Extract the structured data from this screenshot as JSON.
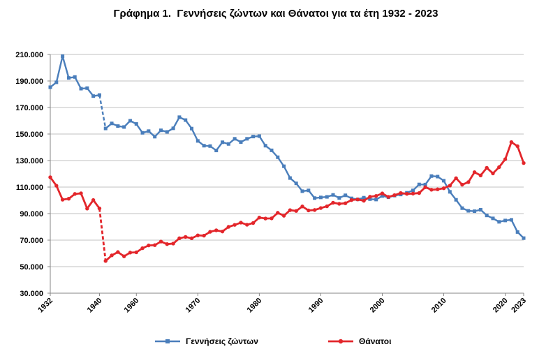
{
  "chart_data": {
    "type": "line",
    "title": "Γράφημα 1.  Γεννήσεις ζώντων και Θάνατοι για τα έτη 1932 - 2023",
    "x": [
      1932,
      1933,
      1934,
      1935,
      1936,
      1937,
      1938,
      1939,
      1940,
      1955,
      1956,
      1957,
      1958,
      1959,
      1960,
      1961,
      1962,
      1963,
      1964,
      1965,
      1966,
      1967,
      1968,
      1969,
      1970,
      1971,
      1972,
      1973,
      1974,
      1975,
      1976,
      1977,
      1978,
      1979,
      1980,
      1981,
      1982,
      1983,
      1984,
      1985,
      1986,
      1987,
      1988,
      1989,
      1990,
      1991,
      1992,
      1993,
      1994,
      1995,
      1996,
      1997,
      1998,
      1999,
      2000,
      2001,
      2002,
      2003,
      2004,
      2005,
      2006,
      2007,
      2008,
      2009,
      2010,
      2011,
      2012,
      2013,
      2014,
      2015,
      2016,
      2017,
      2018,
      2019,
      2020,
      2021,
      2022,
      2023
    ],
    "xticks": [
      1932,
      1940,
      1960,
      1970,
      1980,
      1990,
      2000,
      2010,
      2020,
      2023
    ],
    "xtick_labels": [
      "1932",
      "1940",
      "1960",
      "1970",
      "1980",
      "1990",
      "2000",
      "2010",
      "2020",
      "2023"
    ],
    "ylim": [
      30000,
      210000
    ],
    "yticks": [
      30000,
      50000,
      70000,
      90000,
      110000,
      130000,
      150000,
      170000,
      190000,
      210000
    ],
    "ytick_labels": [
      "30.000",
      "50.000",
      "70.000",
      "90.000",
      "110.000",
      "130.000",
      "150.000",
      "170.000",
      "190.000",
      "210.000"
    ],
    "grid": "horizontal",
    "legend": "bottom",
    "series": [
      {
        "name": "Γεννήσεις ζώντων",
        "color": "#4a7ebb",
        "marker": "square",
        "values": [
          185300,
          189000,
          208700,
          192300,
          193000,
          184200,
          184600,
          178600,
          179400,
          154200,
          158000,
          156000,
          155300,
          160000,
          157600,
          150900,
          152200,
          148000,
          152800,
          151600,
          154300,
          162700,
          160500,
          154100,
          144800,
          141200,
          140900,
          137600,
          143800,
          142500,
          146400,
          143900,
          146400,
          148100,
          148400,
          141200,
          137700,
          132500,
          125700,
          116800,
          112800,
          106900,
          107500,
          101700,
          102200,
          102600,
          104100,
          101800,
          103800,
          101500,
          100700,
          102000,
          100900,
          100600,
          103300,
          102300,
          103600,
          104400,
          105700,
          107500,
          112000,
          111900,
          118300,
          117900,
          114800,
          106400,
          100400,
          94100,
          92100,
          91800,
          92900,
          88600,
          86400,
          83800,
          84800,
          85300,
          76100,
          71500
        ]
      },
      {
        "name": "Θάνατοι",
        "color": "#e3262b",
        "marker": "circle",
        "values": [
          117400,
          111000,
          100500,
          101200,
          104800,
          105300,
          93800,
          100200,
          93900,
          54300,
          58500,
          61000,
          57800,
          60600,
          60800,
          63900,
          66000,
          66200,
          68900,
          67000,
          67400,
          71400,
          72400,
          71400,
          73600,
          73400,
          76300,
          77400,
          76500,
          80000,
          81500,
          83200,
          81600,
          82900,
          87000,
          86300,
          86400,
          90600,
          88400,
          92600,
          92000,
          95400,
          92400,
          92700,
          94200,
          95500,
          98200,
          97400,
          97800,
          100200,
          100700,
          99700,
          102700,
          103300,
          105200,
          102600,
          103900,
          105500,
          104900,
          105100,
          105500,
          109900,
          108000,
          108300,
          109100,
          111100,
          116700,
          111800,
          113700,
          121200,
          118800,
          124500,
          120300,
          125000,
          131000,
          143900,
          140800,
          128100
        ]
      }
    ]
  }
}
